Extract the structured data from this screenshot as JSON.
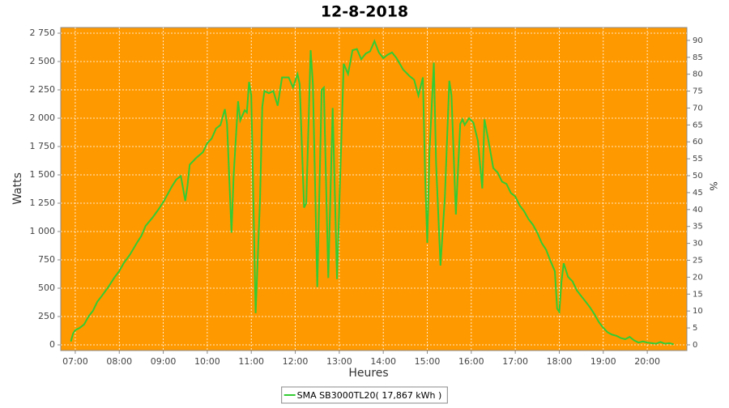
{
  "chart_data": {
    "type": "line",
    "title": "12-8-2018",
    "xlabel": "Heures",
    "ylabel": "Watts",
    "y2label": "%",
    "background": "#ff9900",
    "grid": true,
    "x": [
      6.9,
      6.95,
      7.0,
      7.1,
      7.2,
      7.3,
      7.4,
      7.5,
      7.6,
      7.75,
      7.9,
      8.0,
      8.1,
      8.25,
      8.4,
      8.5,
      8.6,
      8.75,
      8.9,
      9.0,
      9.1,
      9.2,
      9.3,
      9.4,
      9.5,
      9.55,
      9.6,
      9.75,
      9.9,
      10.0,
      10.1,
      10.2,
      10.3,
      10.4,
      10.45,
      10.55,
      10.6,
      10.7,
      10.75,
      10.85,
      10.9,
      10.95,
      11.0,
      11.1,
      11.2,
      11.25,
      11.3,
      11.4,
      11.5,
      11.6,
      11.7,
      11.85,
      11.95,
      12.05,
      12.1,
      12.2,
      12.25,
      12.35,
      12.4,
      12.5,
      12.6,
      12.65,
      12.75,
      12.85,
      12.95,
      13.1,
      13.2,
      13.3,
      13.4,
      13.5,
      13.6,
      13.7,
      13.8,
      13.9,
      14.0,
      14.1,
      14.2,
      14.3,
      14.45,
      14.6,
      14.7,
      14.8,
      14.9,
      14.95,
      15.0,
      15.05,
      15.15,
      15.2,
      15.3,
      15.4,
      15.5,
      15.55,
      15.65,
      15.75,
      15.8,
      15.85,
      15.95,
      16.05,
      16.15,
      16.25,
      16.3,
      16.4,
      16.5,
      16.6,
      16.7,
      16.8,
      16.9,
      17.0,
      17.1,
      17.2,
      17.3,
      17.4,
      17.5,
      17.6,
      17.7,
      17.8,
      17.9,
      17.95,
      18.0,
      18.05,
      18.1,
      18.2,
      18.3,
      18.4,
      18.5,
      18.6,
      18.7,
      18.8,
      18.9,
      19.0,
      19.1,
      19.2,
      19.3,
      19.4,
      19.5,
      19.6,
      19.7,
      19.8,
      19.9,
      20.0,
      20.1,
      20.2,
      20.3,
      20.4,
      20.5,
      20.6
    ],
    "series": [
      {
        "name": "SMA SB3000TL20( 17,867 kWh )",
        "color": "#33cc33",
        "values": [
          30,
          100,
          130,
          150,
          180,
          250,
          300,
          380,
          430,
          510,
          600,
          650,
          720,
          800,
          900,
          960,
          1050,
          1120,
          1200,
          1260,
          1330,
          1400,
          1460,
          1490,
          1270,
          1400,
          1590,
          1650,
          1700,
          1780,
          1820,
          1910,
          1940,
          2080,
          1950,
          990,
          1500,
          2150,
          1980,
          2070,
          2050,
          2320,
          2200,
          280,
          1300,
          2100,
          2240,
          2220,
          2240,
          2110,
          2360,
          2360,
          2270,
          2390,
          2300,
          1210,
          1250,
          2600,
          2300,
          510,
          2250,
          2270,
          590,
          2090,
          580,
          2480,
          2390,
          2600,
          2610,
          2520,
          2570,
          2590,
          2680,
          2580,
          2530,
          2560,
          2580,
          2530,
          2430,
          2370,
          2340,
          2200,
          2360,
          1500,
          900,
          1700,
          2490,
          1600,
          700,
          1300,
          2330,
          2200,
          1150,
          1950,
          1990,
          1940,
          2000,
          1960,
          1800,
          1380,
          1990,
          1780,
          1560,
          1520,
          1440,
          1420,
          1340,
          1310,
          1230,
          1180,
          1110,
          1060,
          990,
          900,
          840,
          740,
          650,
          320,
          290,
          560,
          720,
          600,
          560,
          480,
          430,
          380,
          330,
          270,
          200,
          150,
          110,
          90,
          80,
          60,
          50,
          70,
          40,
          20,
          30,
          20,
          15,
          10,
          25,
          10,
          15,
          5
        ]
      }
    ],
    "xlim": [
      6.67,
      20.9
    ],
    "xticks": [
      {
        "value": 7,
        "label": "07:00"
      },
      {
        "value": 8,
        "label": "08:00"
      },
      {
        "value": 9,
        "label": "09:00"
      },
      {
        "value": 10,
        "label": "10:00"
      },
      {
        "value": 11,
        "label": "11:00"
      },
      {
        "value": 12,
        "label": "12:00"
      },
      {
        "value": 13,
        "label": "13:00"
      },
      {
        "value": 14,
        "label": "14:00"
      },
      {
        "value": 15,
        "label": "15:00"
      },
      {
        "value": 16,
        "label": "16:00"
      },
      {
        "value": 17,
        "label": "17:00"
      },
      {
        "value": 18,
        "label": "18:00"
      },
      {
        "value": 19,
        "label": "19:00"
      },
      {
        "value": 20,
        "label": "20:00"
      }
    ],
    "ylim": [
      -50,
      2800
    ],
    "yticks": [
      0,
      250,
      500,
      750,
      {
        "value": 1000,
        "label": "1 000"
      },
      {
        "value": 1250,
        "label": "1 250"
      },
      {
        "value": 1500,
        "label": "1 500"
      },
      {
        "value": 1750,
        "label": "1 750"
      },
      {
        "value": 2000,
        "label": "2 000"
      },
      {
        "value": 2250,
        "label": "2 250"
      },
      {
        "value": 2500,
        "label": "2 500"
      },
      {
        "value": 2750,
        "label": "2 750"
      }
    ],
    "y2lim": [
      -1.68,
      93.8
    ],
    "y2ticks": [
      0,
      5,
      10,
      15,
      20,
      25,
      30,
      35,
      40,
      45,
      50,
      55,
      60,
      65,
      70,
      75,
      80,
      85,
      90
    ]
  }
}
